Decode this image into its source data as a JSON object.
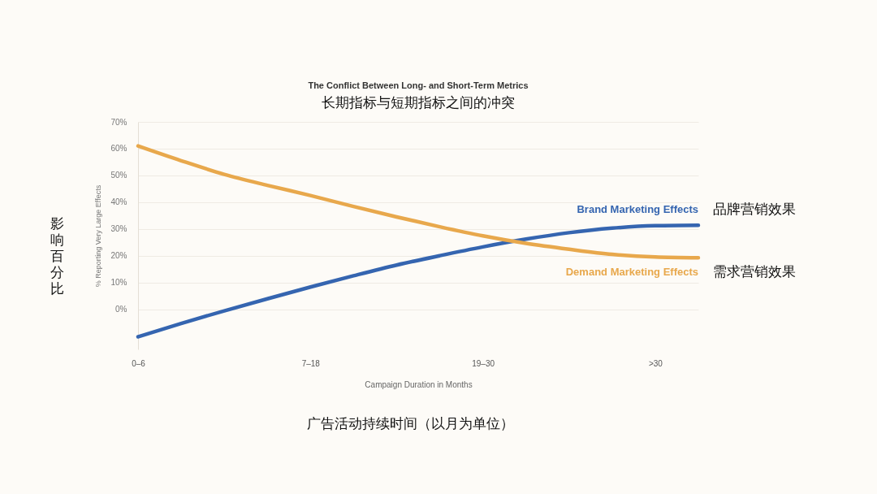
{
  "chart_data": {
    "type": "line",
    "title": "The Conflict Between Long- and Short-Term Metrics",
    "subtitle": "长期指标与短期指标之间的冲突",
    "xlabel": "Campaign Duration in Months",
    "ylabel": "% Reporting Very Large Effects",
    "categories": [
      "0–6",
      null,
      null,
      null,
      "7–18",
      null,
      null,
      null,
      "19–30",
      null,
      null,
      null,
      ">30",
      null
    ],
    "ylim": [
      -15,
      70
    ],
    "yticks": [
      {
        "value": 0,
        "label": "0%"
      },
      {
        "value": 10,
        "label": "10%"
      },
      {
        "value": 20,
        "label": "20%"
      },
      {
        "value": 30,
        "label": "30%"
      },
      {
        "value": 40,
        "label": "40%"
      },
      {
        "value": 50,
        "label": "50%"
      },
      {
        "value": 60,
        "label": "60%"
      },
      {
        "value": 70,
        "label": "70%"
      }
    ],
    "series": [
      {
        "name": "Brand Marketing Effects",
        "color": "#3565b0",
        "values": [
          -10.3,
          -5.3,
          -0.6,
          3.9,
          8.3,
          12.5,
          16.5,
          20.0,
          23.3,
          26.2,
          28.6,
          30.3,
          31.2,
          31.4
        ]
      },
      {
        "name": "Demand Marketing  Effects",
        "color": "#e8a84c",
        "values": [
          61.0,
          55.5,
          50.4,
          46.3,
          42.5,
          38.4,
          34.5,
          30.8,
          27.4,
          24.6,
          22.4,
          20.5,
          19.5,
          19.2
        ]
      }
    ],
    "annotations": [
      "品牌营销效果",
      "需求营销效果",
      "影响百分比",
      "广告活动持续时间（以月为单位）"
    ],
    "grid": "y",
    "marker": "none",
    "line_style": "solid"
  }
}
